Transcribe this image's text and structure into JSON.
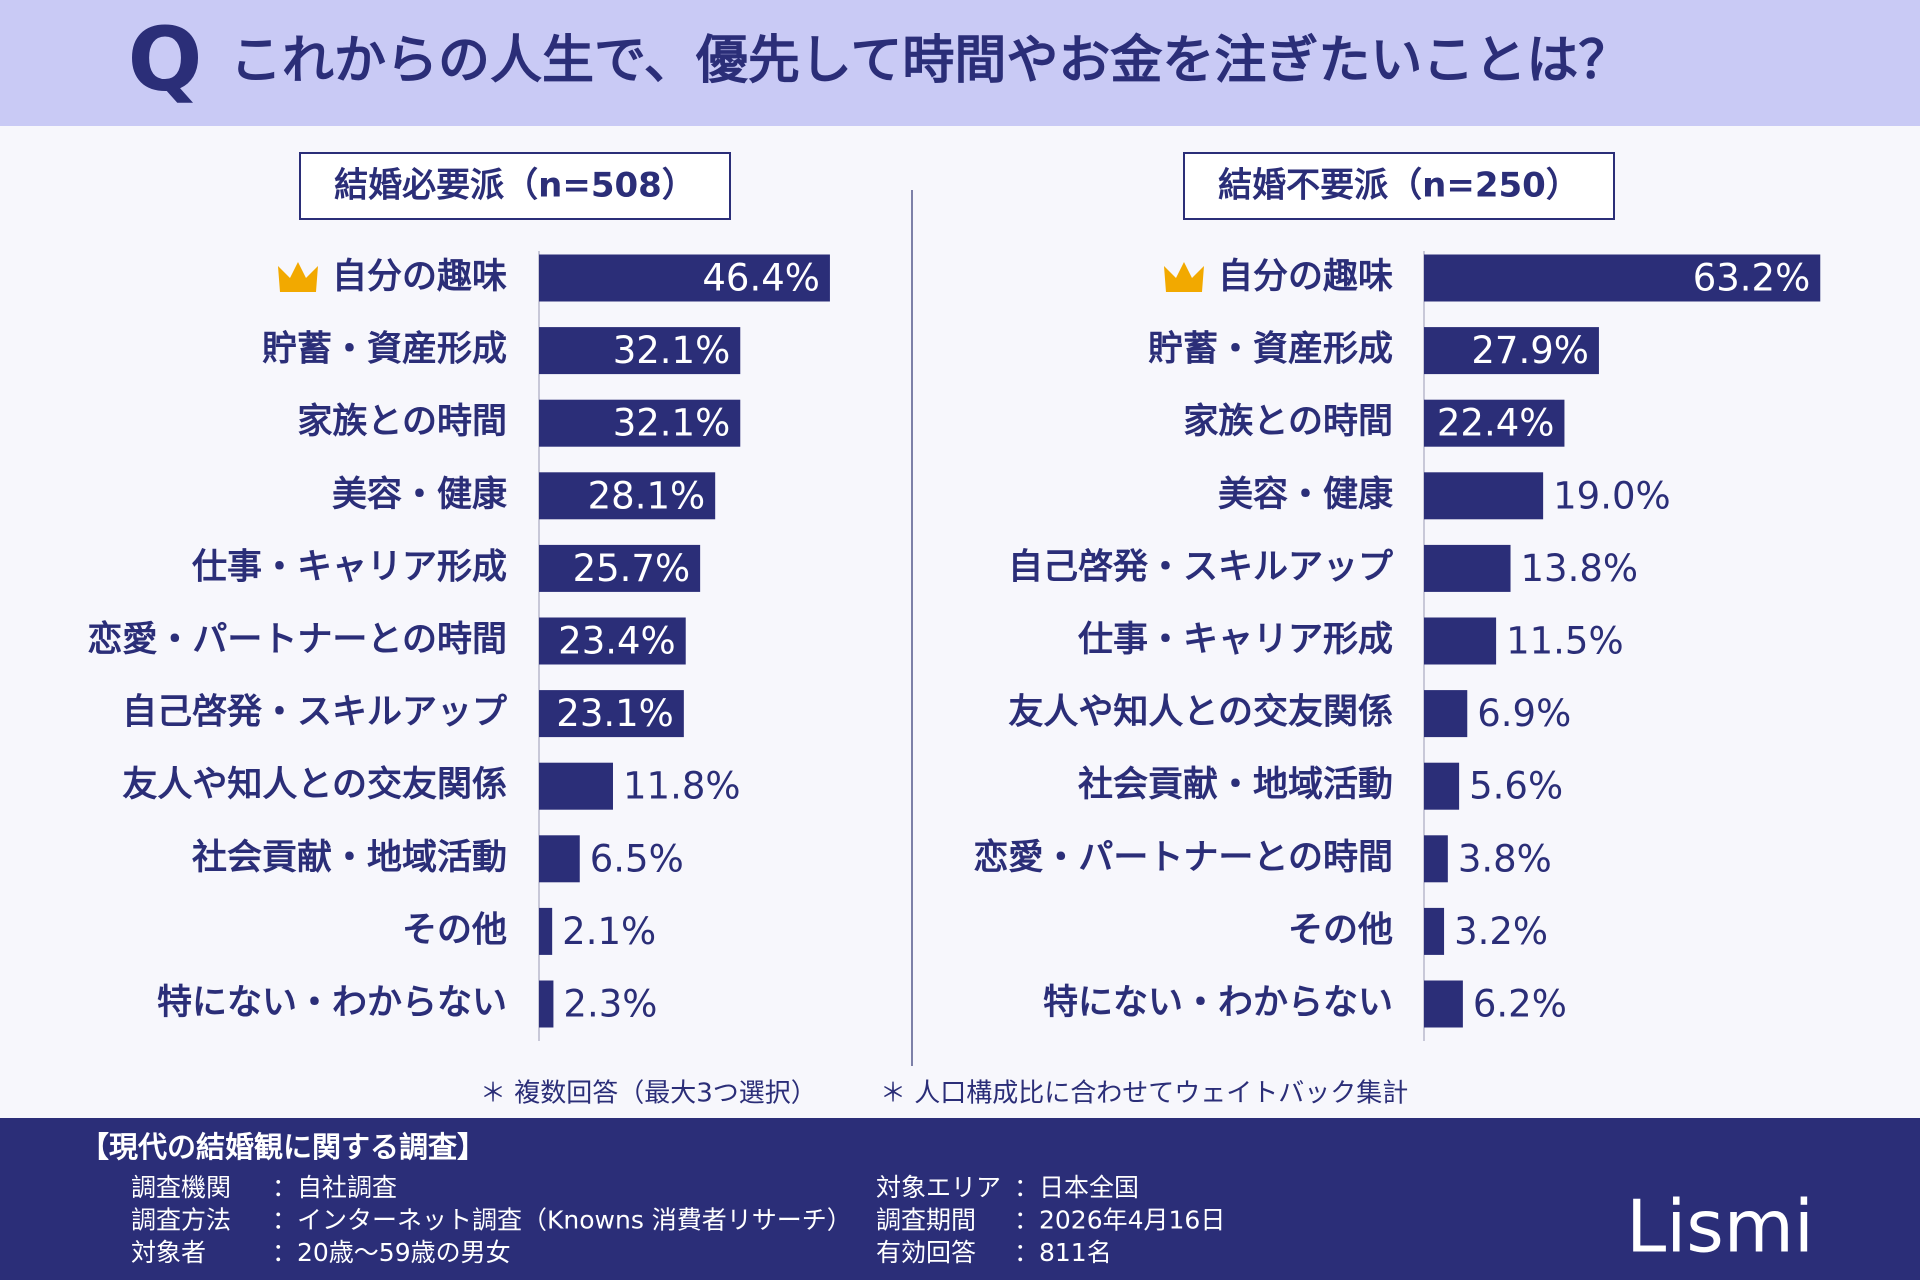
{
  "q_mark": "Q",
  "title": "これからの人生で、優先して時間やお金を注ぎたいことは？",
  "chart_data": [
    {
      "type": "bar",
      "orientation": "horizontal",
      "title": "結婚必要派（n=508）",
      "color": "#2b2e78",
      "categories": [
        "自分の趣味",
        "貯蓄・資産形成",
        "家族との時間",
        "美容・健康",
        "仕事・キャリア形成",
        "恋愛・パートナーとの時間",
        "自己啓発・スキルアップ",
        "友人や知人との交友関係",
        "社会貢献・地域活動",
        "その他",
        "特にない・わからない"
      ],
      "values": [
        46.4,
        32.1,
        32.1,
        28.1,
        25.7,
        23.4,
        23.1,
        11.8,
        6.5,
        2.1,
        2.3
      ],
      "value_labels": [
        "46.4%",
        "32.1%",
        "32.1%",
        "28.1%",
        "25.7%",
        "23.4%",
        "23.1%",
        "11.8%",
        "6.5%",
        "2.1%",
        "2.3%"
      ]
    },
    {
      "type": "bar",
      "orientation": "horizontal",
      "title": "結婚不要派（n=250）",
      "color": "#2b2e78",
      "categories": [
        "自分の趣味",
        "貯蓄・資産形成",
        "家族との時間",
        "美容・健康",
        "自己啓発・スキルアップ",
        "仕事・キャリア形成",
        "友人や知人との交友関係",
        "社会貢献・地域活動",
        "恋愛・パートナーとの時間",
        "その他",
        "特にない・わからない"
      ],
      "values": [
        63.2,
        27.9,
        22.4,
        19.0,
        13.8,
        11.5,
        6.9,
        5.6,
        3.8,
        3.2,
        6.2
      ],
      "value_labels": [
        "63.2%",
        "27.9%",
        "22.4%",
        "19.0%",
        "13.8%",
        "11.5%",
        "6.9%",
        "5.6%",
        "3.8%",
        "3.2%",
        "6.2%"
      ]
    }
  ],
  "notes": [
    "＊ 複数回答（最大3つ選択）",
    "＊ 人口構成比に合わせてウェイトバック集計"
  ],
  "survey": {
    "title": "【現代の結婚観に関する調査】",
    "items": [
      {
        "label": "調査機関",
        "value": "：自社調査"
      },
      {
        "label": "調査方法",
        "value": "：インターネット調査（Knowns 消費者リサーチ）"
      },
      {
        "label": "対象者",
        "value": "：20歳～59歳の男女"
      },
      {
        "label": "対象エリア",
        "value": "：日本全国"
      },
      {
        "label": "調査期間",
        "value": "：2026年4月16日"
      },
      {
        "label": "有効回答",
        "value": "：811名"
      }
    ]
  },
  "logo": "Lismi"
}
